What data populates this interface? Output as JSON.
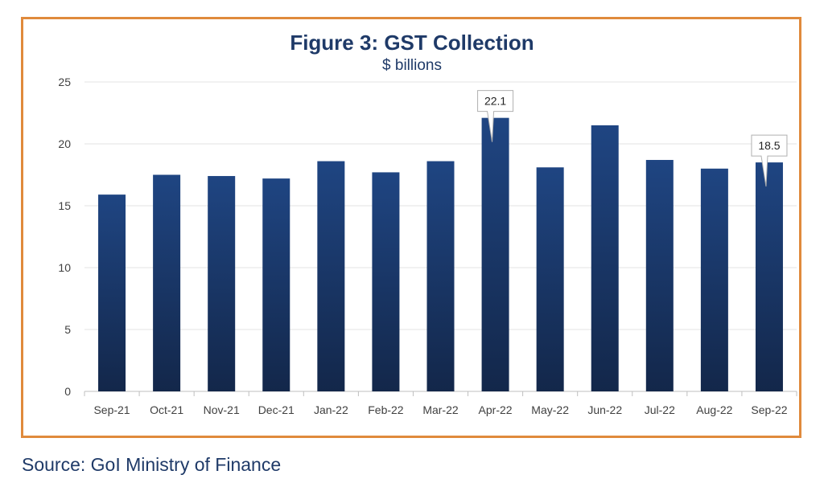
{
  "chart_data": {
    "type": "bar",
    "title": "Figure 3: GST Collection",
    "subtitle": "$ billions",
    "categories": [
      "Sep-21",
      "Oct-21",
      "Nov-21",
      "Dec-21",
      "Jan-22",
      "Feb-22",
      "Mar-22",
      "Apr-22",
      "May-22",
      "Jun-22",
      "Jul-22",
      "Aug-22",
      "Sep-22"
    ],
    "values": [
      15.9,
      17.5,
      17.4,
      17.2,
      18.6,
      17.7,
      18.6,
      22.1,
      18.1,
      21.5,
      18.7,
      18.0,
      18.5
    ],
    "ylim": [
      0,
      25
    ],
    "yticks": [
      0,
      5,
      10,
      15,
      20,
      25
    ],
    "grid": true,
    "legend": "none",
    "data_labels": [
      {
        "category": "Apr-22",
        "text": "22.1"
      },
      {
        "category": "Sep-22",
        "text": "18.5"
      }
    ],
    "colors": {
      "bar_top": "#1f4582",
      "bar_bottom": "#13274a",
      "frame": "#e08a3c",
      "title": "#1f3a68"
    }
  },
  "source": "Source: GoI Ministry of Finance"
}
